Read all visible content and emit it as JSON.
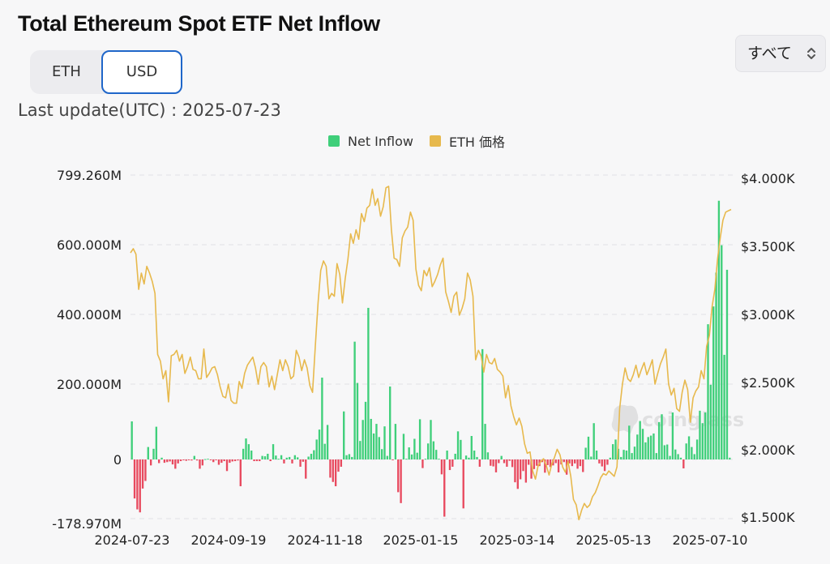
{
  "title": "Total Ethereum Spot ETF Net Inflow",
  "toggle": {
    "eth_label": "ETH",
    "usd_label": "USD",
    "selected": "USD"
  },
  "range_select": {
    "label": "すべて"
  },
  "last_update": "Last update(UTC) : 2025-07-23",
  "legend": [
    {
      "name": "Net Inflow",
      "color": "#3fcf7a"
    },
    {
      "name": "ETH 価格",
      "color": "#e7b94d"
    }
  ],
  "watermark": "coinglass",
  "chart_data": {
    "type": "bar",
    "left_axis": {
      "ticks": [
        "799.260M",
        "600.000M",
        "400.000M",
        "200.000M",
        "0",
        "-178.970M"
      ],
      "min": -178.97,
      "max": 799.26,
      "unit": "M USD"
    },
    "right_axis": {
      "ticks": [
        "$4.000K",
        "$3.500K",
        "$3.000K",
        "$2.500K",
        "$2.000K",
        "$1.500K"
      ],
      "min": 1500,
      "max": 4000
    },
    "x_ticks": [
      "2024-07-23",
      "2024-09-19",
      "2024-11-18",
      "2025-01-15",
      "2025-03-14",
      "2025-05-13",
      "2025-07-10"
    ],
    "colors": {
      "positive": "#3fcf7a",
      "negative": "#e84a5f",
      "price": "#e7b94d"
    },
    "series": [
      {
        "name": "Net Inflow",
        "values": [
          107,
          -118,
          -151,
          -160,
          -88,
          -65,
          35,
          -18,
          30,
          92,
          -11,
          5,
          -10,
          -8,
          -6,
          -15,
          -28,
          -12,
          -5,
          -2,
          -4,
          -1,
          -3,
          10,
          -3,
          -28,
          -18,
          1,
          2,
          -2,
          -8,
          -2,
          -16,
          -10,
          -5,
          -35,
          -10,
          -6,
          -5,
          -3,
          -81,
          30,
          59,
          43,
          25,
          -5,
          -5,
          -5,
          10,
          9,
          16,
          -5,
          43,
          11,
          2,
          12,
          -12,
          5,
          7,
          -12,
          12,
          6,
          -22,
          -7,
          -58,
          8,
          16,
          26,
          56,
          84,
          230,
          44,
          97,
          -55,
          -68,
          -81,
          -37,
          -22,
          135,
          12,
          15,
          7,
          331,
          215,
          52,
          111,
          162,
          426,
          114,
          73,
          100,
          63,
          29,
          93,
          10,
          205,
          -1,
          100,
          -99,
          -132,
          72,
          2,
          34,
          14,
          58,
          19,
          113,
          -26,
          2,
          45,
          111,
          51,
          27,
          2,
          -45,
          -173,
          25,
          -32,
          -22,
          16,
          79,
          55,
          -148,
          11,
          5,
          66,
          25,
          7,
          -22,
          310,
          100,
          20,
          -19,
          -21,
          -39,
          -11,
          10,
          -11,
          -22,
          -4,
          -23,
          -69,
          -89,
          -60,
          -35,
          -70,
          -16,
          -58,
          -29,
          -19,
          -20,
          -8,
          -40,
          -17,
          -23,
          -18,
          -11,
          -39,
          -15,
          -8,
          -46,
          -12,
          -20,
          -12,
          -28,
          -20,
          -38,
          33,
          64,
          8,
          102,
          25,
          -12,
          -21,
          -35,
          -16,
          5,
          43,
          56,
          30,
          7,
          27,
          25,
          95,
          18,
          36,
          70,
          108,
          86,
          48,
          63,
          67,
          73,
          18,
          105,
          127,
          40,
          42,
          10,
          132,
          28,
          15,
          5,
          -27,
          45,
          65,
          35,
          15,
          56,
          137,
          102,
          132,
          380,
          210,
          430,
          525,
          727,
          602,
          294,
          533,
          5
        ]
      },
      {
        "name": "ETH 価格",
        "values": [
          3450,
          3480,
          3440,
          3180,
          3300,
          3220,
          3350,
          3300,
          3240,
          3150,
          2700,
          2650,
          2520,
          2580,
          2350,
          2690,
          2700,
          2730,
          2650,
          2700,
          2560,
          2610,
          2680,
          2590,
          2580,
          2520,
          2520,
          2740,
          2530,
          2560,
          2600,
          2610,
          2550,
          2460,
          2390,
          2380,
          2480,
          2360,
          2340,
          2340,
          2500,
          2450,
          2560,
          2620,
          2650,
          2680,
          2600,
          2480,
          2610,
          2640,
          2610,
          2460,
          2540,
          2440,
          2550,
          2660,
          2580,
          2660,
          2610,
          2520,
          2540,
          2730,
          2680,
          2580,
          2660,
          2600,
          2470,
          2420,
          2760,
          3080,
          3320,
          3390,
          3350,
          3110,
          3150,
          3130,
          3370,
          3290,
          3080,
          3260,
          3400,
          3590,
          3520,
          3620,
          3550,
          3740,
          3680,
          3780,
          3800,
          3920,
          3800,
          3850,
          3720,
          3790,
          3930,
          3940,
          3620,
          3410,
          3400,
          3350,
          3560,
          3610,
          3640,
          3750,
          3690,
          3330,
          3210,
          3170,
          3320,
          3280,
          3340,
          3200,
          3240,
          3290,
          3360,
          3410,
          3160,
          3090,
          3010,
          3130,
          3160,
          2990,
          3040,
          3110,
          3300,
          3250,
          3130,
          2660,
          2730,
          2690,
          2570,
          2700,
          2640,
          2630,
          2670,
          2590,
          2570,
          2540,
          2380,
          2470,
          2320,
          2240,
          2180,
          2230,
          2170,
          2040,
          1970,
          1980,
          1840,
          1780,
          1880,
          1910,
          1930,
          1880,
          1810,
          1890,
          1940,
          2000,
          1960,
          1870,
          1830,
          1910,
          1800,
          1630,
          1590,
          1480,
          1550,
          1600,
          1570,
          1590,
          1650,
          1680,
          1730,
          1790,
          1820,
          1810,
          1840,
          1820,
          1800,
          1870,
          2300,
          2480,
          2600,
          2520,
          2500,
          2550,
          2620,
          2530,
          2590,
          2640,
          2550,
          2600,
          2660,
          2480,
          2560,
          2630,
          2680,
          2740,
          2480,
          2400,
          2450,
          2300,
          2280,
          2420,
          2510,
          2440,
          2200,
          2380,
          2430,
          2460,
          2580,
          2520,
          2760,
          2840,
          3050,
          3180,
          3400,
          3560,
          3690,
          3750,
          3760,
          3770
        ]
      }
    ]
  }
}
